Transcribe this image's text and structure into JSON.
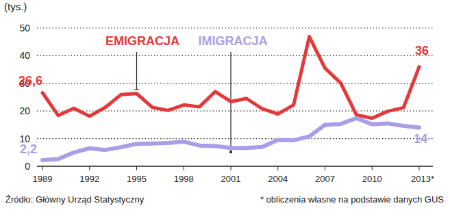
{
  "chart_data": {
    "type": "line",
    "y_label": "(tys.)",
    "x": [
      1989,
      1990,
      1991,
      1992,
      1993,
      1994,
      1995,
      1996,
      1997,
      1998,
      1999,
      2000,
      2001,
      2002,
      2003,
      2004,
      2005,
      2006,
      2007,
      2008,
      2009,
      2010,
      2011,
      2012,
      2013
    ],
    "series": [
      {
        "name": "EMIGRACJA",
        "color": "#e5383b",
        "values": [
          26.6,
          18.4,
          21.0,
          18.1,
          21.3,
          25.9,
          26.3,
          21.3,
          20.2,
          22.2,
          21.5,
          27.0,
          23.4,
          24.5,
          20.8,
          18.9,
          22.2,
          46.9,
          35.5,
          30.1,
          18.6,
          17.4,
          19.9,
          21.2,
          36
        ],
        "value_labels": [
          "26,6",
          null,
          null,
          null,
          null,
          null,
          null,
          null,
          null,
          null,
          null,
          null,
          null,
          null,
          null,
          null,
          null,
          null,
          null,
          null,
          null,
          null,
          null,
          null,
          "36"
        ]
      },
      {
        "name": "IMIGRACJA",
        "color": "#a99fe9",
        "values": [
          2.2,
          2.6,
          5.0,
          6.5,
          5.9,
          6.9,
          8.1,
          8.2,
          8.4,
          8.9,
          7.5,
          7.3,
          6.6,
          6.6,
          7.0,
          9.5,
          9.4,
          10.8,
          15.0,
          15.3,
          17.4,
          15.2,
          15.5,
          14.6,
          14
        ],
        "value_labels": [
          "2,2",
          null,
          null,
          null,
          null,
          null,
          null,
          null,
          null,
          null,
          null,
          null,
          null,
          null,
          null,
          null,
          null,
          null,
          null,
          null,
          null,
          null,
          null,
          null,
          "14"
        ]
      }
    ],
    "xlim": [
      1989,
      2013
    ],
    "xticks": [
      1989,
      1992,
      1995,
      1998,
      2001,
      2004,
      2007,
      2010,
      {
        "value": 2013,
        "label": "2013*"
      }
    ],
    "ylim": [
      0,
      50
    ],
    "yticks": [
      0,
      10,
      20,
      30,
      40,
      50
    ],
    "grid": true,
    "source": "Źródło: Główny Urząd Statystyczny",
    "note": "* obliczenia własne na podstawie danych GUS"
  }
}
